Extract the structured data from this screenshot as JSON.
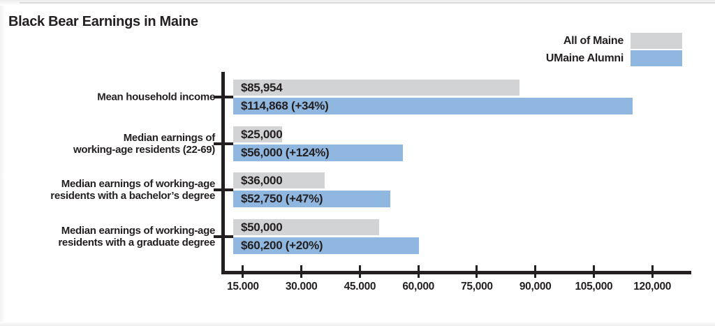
{
  "title": "Black Bear Earnings in Maine",
  "legend": {
    "position": "top-right",
    "items": [
      {
        "label": "All of Maine",
        "color": "#d2d3d4"
      },
      {
        "label": "UMaine Alumni",
        "color": "#90b7e0"
      }
    ]
  },
  "colors": {
    "ink": "#231f20",
    "all_of_maine_bar": "#d2d3d4",
    "umaine_alumni_bar": "#90b7e0",
    "background": "#ffffff"
  },
  "chart_data": {
    "type": "bar",
    "orientation": "horizontal",
    "title": "Black Bear Earnings in Maine",
    "legend_position": "top-right",
    "series_names": [
      "All of Maine",
      "UMaine Alumni"
    ],
    "categories": [
      "Mean household income",
      "Median earnings of working-age residents (22-69)",
      "Median earnings of working-age residents with a bachelor’s degree",
      "Median earnings of working-age residents with a graduate degree"
    ],
    "groups": [
      {
        "category_lines": [
          "Mean household income"
        ],
        "bars": [
          {
            "series": "All of Maine",
            "value": 85954,
            "label": "$85,954"
          },
          {
            "series": "UMaine Alumni",
            "value": 114868,
            "label": "$114,868 (+34%)",
            "pct_change": "+34%"
          }
        ]
      },
      {
        "category_lines": [
          "Median earnings of",
          "working-age residents (22-69)"
        ],
        "bars": [
          {
            "series": "All of Maine",
            "value": 25000,
            "label": "$25,000"
          },
          {
            "series": "UMaine Alumni",
            "value": 56000,
            "label": "$56,000 (+124%)",
            "pct_change": "+124%"
          }
        ]
      },
      {
        "category_lines": [
          "Median earnings of working-age",
          "residents with a bachelor’s degree"
        ],
        "bars": [
          {
            "series": "All of Maine",
            "value": 36000,
            "label": "$36,000"
          },
          {
            "series": "UMaine Alumni",
            "value": 52750,
            "label": "$52,750 (+47%)",
            "pct_change": "+47%"
          }
        ]
      },
      {
        "category_lines": [
          "Median earnings of working-age",
          "residents with a graduate degree"
        ],
        "bars": [
          {
            "series": "All of Maine",
            "value": 50000,
            "label": "$50,000"
          },
          {
            "series": "UMaine Alumni",
            "value": 60200,
            "label": "$60,200 (+20%)",
            "pct_change": "+20%"
          }
        ]
      }
    ],
    "x_axis": {
      "axis_origin_value": 10000,
      "axis_end_value": 130000,
      "tick_interval": 15000,
      "tick_values": [
        15000,
        30000,
        45000,
        60000,
        75000,
        90000,
        105000,
        120000
      ],
      "tick_labels": [
        "15.000",
        "30.000",
        "45.000",
        "60,000",
        "75,000",
        "90,000",
        "105,000",
        "120,000"
      ]
    },
    "grid": false,
    "value_labels": "inside-bar-left"
  }
}
